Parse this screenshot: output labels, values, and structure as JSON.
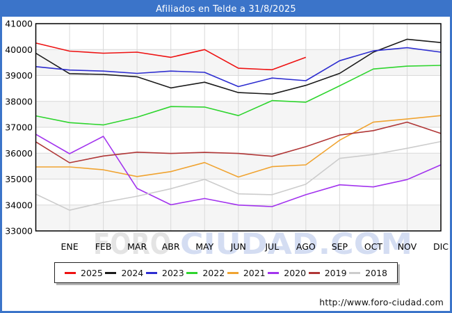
{
  "header": {
    "title": "Afiliados en Telde a 31/8/2025"
  },
  "watermark": {
    "part1": "FORO",
    "part2": "CIUDAD.COM"
  },
  "footer": {
    "url": "http://www.foro-ciudad.com"
  },
  "colors": {
    "header_bg": "#3b74c9",
    "frame_border": "#3b74c9",
    "grid": "#d9d9d9",
    "band": "#f5f5f5",
    "axis": "#000000",
    "watermark_1": "#e4e4e4",
    "watermark_2": "#d4ddf2"
  },
  "chart_data": {
    "type": "line",
    "title": "Afiliados en Telde a 31/8/2025",
    "categories": [
      "ENE",
      "FEB",
      "MAR",
      "ABR",
      "MAY",
      "JUN",
      "JUL",
      "AGO",
      "SEP",
      "OCT",
      "NOV",
      "DIC"
    ],
    "ylim": [
      33000,
      41000
    ],
    "yticks": [
      41000,
      40000,
      39000,
      38000,
      37000,
      36000,
      35000,
      34000,
      33000
    ],
    "grid": true,
    "legend_position": "bottom",
    "series": [
      {
        "name": "2025",
        "color": "#ee1111",
        "start_value": 40250,
        "values": [
          39940,
          39860,
          39900,
          39700,
          40000,
          39280,
          39220,
          39700,
          null,
          null,
          null,
          null
        ]
      },
      {
        "name": "2024",
        "color": "#1a1a1a",
        "start_value": 39860,
        "values": [
          39070,
          39040,
          38950,
          38520,
          38740,
          38340,
          38280,
          38620,
          39080,
          39900,
          40400,
          40270
        ]
      },
      {
        "name": "2023",
        "color": "#2d2dd0",
        "start_value": 39340,
        "values": [
          39210,
          39170,
          39080,
          39170,
          39120,
          38570,
          38900,
          38800,
          39570,
          39950,
          40070,
          39900
        ]
      },
      {
        "name": "2022",
        "color": "#2ed52e",
        "start_value": 37440,
        "values": [
          37180,
          37090,
          37390,
          37800,
          37780,
          37450,
          38030,
          37970,
          38600,
          39250,
          39360,
          39390
        ]
      },
      {
        "name": "2021",
        "color": "#f0a330",
        "start_value": 35470,
        "values": [
          35470,
          35360,
          35100,
          35290,
          35640,
          35080,
          35480,
          35550,
          36500,
          37200,
          37320,
          37450
        ]
      },
      {
        "name": "2020",
        "color": "#a233ee",
        "start_value": 36730,
        "values": [
          35980,
          36650,
          34640,
          34010,
          34250,
          34000,
          33940,
          34400,
          34780,
          34700,
          34980,
          35550
        ]
      },
      {
        "name": "2019",
        "color": "#b03636",
        "start_value": 36440,
        "values": [
          35630,
          35890,
          36040,
          35990,
          36030,
          35990,
          35880,
          36250,
          36700,
          36870,
          37200,
          36760
        ]
      },
      {
        "name": "2018",
        "color": "#cccccc",
        "start_value": 34420,
        "values": [
          33800,
          34100,
          34340,
          34630,
          34990,
          34430,
          34400,
          34800,
          35800,
          35950,
          36190,
          36450
        ]
      }
    ]
  }
}
